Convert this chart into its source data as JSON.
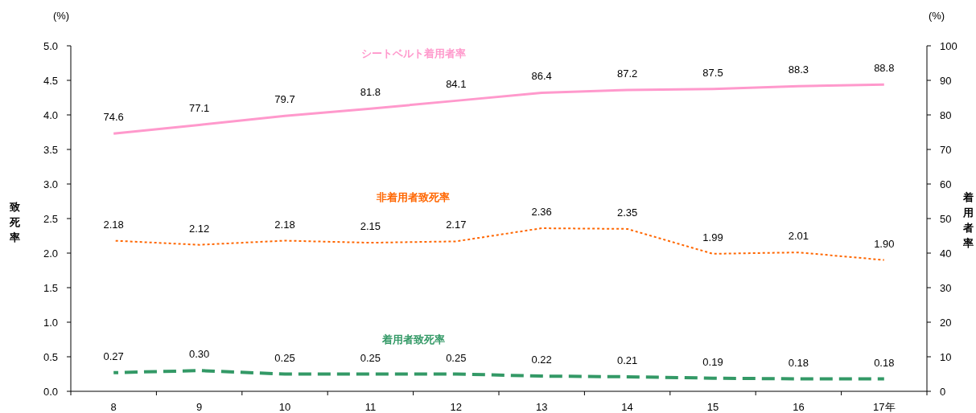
{
  "chart_data": {
    "type": "line",
    "ylabel": "致死率",
    "y2label": "着用者率",
    "annotations": [
      "(%)",
      "(%)"
    ],
    "categories": [
      "8",
      "9",
      "10",
      "11",
      "12",
      "13",
      "14",
      "15",
      "16",
      "17年"
    ],
    "ylim": [
      0,
      5
    ],
    "yticks": [
      {
        "value": 0,
        "label": "0.0"
      },
      {
        "value": 0.5,
        "label": "0.5"
      },
      {
        "value": 1,
        "label": "1.0"
      },
      {
        "value": 1.5,
        "label": "1.5"
      },
      {
        "value": 2,
        "label": "2.0"
      },
      {
        "value": 2.5,
        "label": "2.5"
      },
      {
        "value": 3,
        "label": "3.0"
      },
      {
        "value": 3.5,
        "label": "3.5"
      },
      {
        "value": 4,
        "label": "4.0"
      },
      {
        "value": 4.5,
        "label": "4.5"
      },
      {
        "value": 5,
        "label": "5.0"
      }
    ],
    "y2lim": [
      0,
      100
    ],
    "y2ticks": [
      0,
      10,
      20,
      30,
      40,
      50,
      60,
      70,
      80,
      90,
      100
    ],
    "grid": false,
    "legend": false,
    "marker": "none",
    "series": [
      {
        "name": "シートベルト着用者率",
        "color": "#ff99cc",
        "axis": "y2",
        "line_style": "solid",
        "values": [
          74.6,
          77.1,
          79.7,
          81.8,
          84.1,
          86.4,
          87.2,
          87.5,
          88.3,
          88.8
        ],
        "value_labels": [
          "74.6",
          "77.1",
          "79.7",
          "81.8",
          "84.1",
          "86.4",
          "87.2",
          "87.5",
          "88.3",
          "88.8"
        ]
      },
      {
        "name": "非着用者致死率",
        "color": "#ff6600",
        "line_style": "dotted",
        "values": [
          2.18,
          2.12,
          2.18,
          2.15,
          2.17,
          2.36,
          2.35,
          1.99,
          2.01,
          1.9
        ],
        "value_labels": [
          "2.18",
          "2.12",
          "2.18",
          "2.15",
          "2.17",
          "2.36",
          "2.35",
          "1.99",
          "2.01",
          "1.90"
        ]
      },
      {
        "name": "着用者致死率",
        "color": "#339966",
        "line_style": "dashed",
        "values": [
          0.27,
          0.3,
          0.25,
          0.25,
          0.25,
          0.22,
          0.21,
          0.19,
          0.18,
          0.18
        ],
        "value_labels": [
          "0.27",
          "0.30",
          "0.25",
          "0.25",
          "0.25",
          "0.22",
          "0.21",
          "0.19",
          "0.18",
          "0.18"
        ]
      }
    ]
  }
}
